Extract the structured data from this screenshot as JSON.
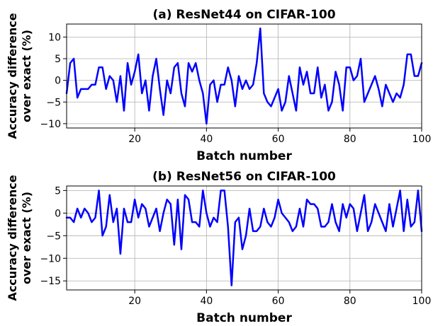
{
  "chart_data": [
    {
      "type": "line",
      "title": "(a) ResNet44 on CIFAR-100",
      "xlabel": "Batch number",
      "ylabel": [
        "Accuracy difference",
        "over exact (%)"
      ],
      "xlim": [
        1,
        100
      ],
      "ylim": [
        -11,
        13
      ],
      "xticks": [
        20,
        40,
        60,
        80,
        100
      ],
      "yticks": [
        -10,
        -5,
        0,
        5,
        10
      ],
      "grid": true,
      "color": "#0000ff",
      "x": [
        1,
        2,
        3,
        4,
        5,
        6,
        7,
        8,
        9,
        10,
        11,
        12,
        13,
        14,
        15,
        16,
        17,
        18,
        19,
        20,
        21,
        22,
        23,
        24,
        25,
        26,
        27,
        28,
        29,
        30,
        31,
        32,
        33,
        34,
        35,
        36,
        37,
        38,
        39,
        40,
        41,
        42,
        43,
        44,
        45,
        46,
        47,
        48,
        49,
        50,
        51,
        52,
        53,
        54,
        55,
        56,
        57,
        58,
        59,
        60,
        61,
        62,
        63,
        64,
        65,
        66,
        67,
        68,
        69,
        70,
        71,
        72,
        73,
        74,
        75,
        76,
        77,
        78,
        79,
        80,
        81,
        82,
        83,
        84,
        85,
        86,
        87,
        88,
        89,
        90,
        91,
        92,
        93,
        94,
        95,
        96,
        97,
        98,
        99,
        100
      ],
      "values": [
        -3,
        4,
        5,
        -4,
        -2,
        -2,
        -2,
        -1,
        -1,
        3,
        3,
        -2,
        1,
        0,
        -5,
        1,
        -7,
        4,
        -1,
        2,
        6,
        -3,
        0,
        -7,
        1,
        5,
        -2,
        -8,
        0,
        -3,
        3,
        4,
        -3,
        -6,
        4,
        2,
        4,
        0,
        -3,
        -10,
        -1,
        0,
        -5,
        -1,
        -1,
        3,
        0,
        -6,
        1,
        -2,
        0,
        -2,
        -1,
        4,
        12,
        -3,
        -5,
        -6,
        -4,
        -2,
        -7,
        -5,
        1,
        -3,
        -7,
        3,
        -1,
        2,
        -3,
        -3,
        3,
        -4,
        -1,
        -7,
        -5,
        2,
        -1,
        -7,
        3,
        3,
        0,
        1,
        5,
        -5,
        -3,
        -1,
        1,
        -2,
        -6,
        -1,
        -3,
        -5,
        -3,
        -4,
        -1,
        6,
        6,
        1,
        1,
        4
      ]
    },
    {
      "type": "line",
      "title": "(b) ResNet56 on CIFAR-100",
      "xlabel": "Batch number",
      "ylabel": [
        "Accuracy difference",
        "over exact (%)"
      ],
      "xlim": [
        1,
        100
      ],
      "ylim": [
        -17,
        6
      ],
      "xticks": [
        20,
        40,
        60,
        80,
        100
      ],
      "yticks": [
        -15,
        -10,
        -5,
        0,
        5
      ],
      "grid": true,
      "color": "#0000ff",
      "x": [
        1,
        2,
        3,
        4,
        5,
        6,
        7,
        8,
        9,
        10,
        11,
        12,
        13,
        14,
        15,
        16,
        17,
        18,
        19,
        20,
        21,
        22,
        23,
        24,
        25,
        26,
        27,
        28,
        29,
        30,
        31,
        32,
        33,
        34,
        35,
        36,
        37,
        38,
        39,
        40,
        41,
        42,
        43,
        44,
        45,
        46,
        47,
        48,
        49,
        50,
        51,
        52,
        53,
        54,
        55,
        56,
        57,
        58,
        59,
        60,
        61,
        62,
        63,
        64,
        65,
        66,
        67,
        68,
        69,
        70,
        71,
        72,
        73,
        74,
        75,
        76,
        77,
        78,
        79,
        80,
        81,
        82,
        83,
        84,
        85,
        86,
        87,
        88,
        89,
        90,
        91,
        92,
        93,
        94,
        95,
        96,
        97,
        98,
        99,
        100
      ],
      "values": [
        -1,
        -1,
        -2,
        1,
        -1,
        1,
        0,
        -2,
        -1,
        5,
        -5,
        -3,
        4,
        -2,
        1,
        -9,
        1,
        -2,
        -2,
        3,
        -1,
        2,
        1,
        -3,
        -1,
        1,
        -4,
        0,
        3,
        2,
        -7,
        3,
        -8,
        4,
        3,
        -2,
        -2,
        -3,
        5,
        0,
        -3,
        -1,
        -2,
        5,
        5,
        -3,
        -16,
        -2,
        -1,
        -8,
        -5,
        1,
        -4,
        -4,
        -3,
        1,
        -2,
        -3,
        -1,
        3,
        0,
        -1,
        -2,
        -4,
        -3,
        1,
        -3,
        3,
        2,
        2,
        1,
        -3,
        -3,
        -2,
        2,
        -2,
        -4,
        2,
        -1,
        2,
        1,
        -4,
        0,
        4,
        -4,
        -2,
        2,
        0,
        -2,
        -4,
        2,
        -3,
        1,
        5,
        -4,
        3,
        -3,
        -2,
        5,
        -4
      ]
    }
  ]
}
